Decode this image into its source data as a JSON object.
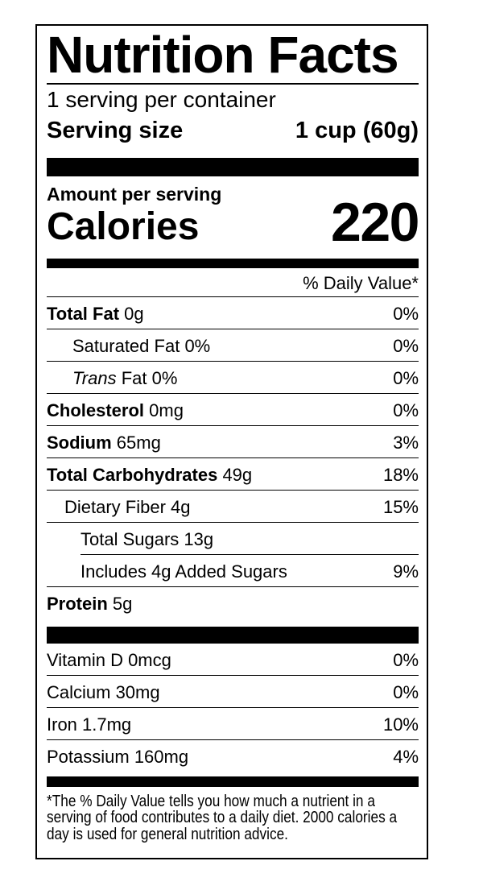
{
  "title": "Nutrition Facts",
  "serving_info": {
    "servings_per_container": "1 serving per container",
    "serving_size_label": "Serving size",
    "serving_size_value": "1 cup (60g)"
  },
  "calories": {
    "amount_per_serving_label": "Amount per serving",
    "label": "Calories",
    "value": "220"
  },
  "daily_value_header": "% Daily Value*",
  "nutrients": [
    {
      "name": "Total Fat",
      "amount": "0g",
      "dv": "0%"
    },
    {
      "name": "Saturated Fat",
      "amount": "0%",
      "dv": "0%"
    },
    {
      "name": "Trans",
      "amount": "Fat 0%",
      "dv": "0%"
    },
    {
      "name": "Cholesterol",
      "amount": "0mg",
      "dv": "0%"
    },
    {
      "name": "Sodium",
      "amount": "65mg",
      "dv": "3%"
    },
    {
      "name": "Total Carbohydrates",
      "amount": "49g",
      "dv": "18%"
    },
    {
      "name": "Dietary Fiber",
      "amount": "4g",
      "dv": ""
    },
    {
      "name": "Dietary Fiber dv",
      "dv_value": "15%"
    },
    {
      "name": "Total Sugars",
      "amount": "13g",
      "dv": ""
    },
    {
      "name": "Includes 4g Added Sugars",
      "amount": "",
      "dv": "9%"
    },
    {
      "name": "Protein",
      "amount": "5g",
      "dv": ""
    }
  ],
  "nutrient_rows": {
    "total_fat": {
      "name": "Total Fat",
      "amount": "0g",
      "dv": "0%"
    },
    "saturated_fat": {
      "name": "Saturated Fat",
      "amount": "0%",
      "dv": "0%"
    },
    "trans_fat": {
      "name": "Trans",
      "amount": "Fat 0%",
      "dv": "0%"
    },
    "cholesterol": {
      "name": "Cholesterol",
      "amount": "0mg",
      "dv": "0%"
    },
    "sodium": {
      "name": "Sodium",
      "amount": "65mg",
      "dv": "3%"
    },
    "total_carbohydrates": {
      "name": "Total Carbohydrates",
      "amount": "49g",
      "dv": "18%"
    },
    "dietary_fiber": {
      "name": "Dietary Fiber",
      "amount": "4g",
      "dv": "15%"
    },
    "total_sugars": {
      "name": "Total Sugars",
      "amount": "13g",
      "dv": ""
    },
    "added_sugars": {
      "name": "Includes 4g Added Sugars",
      "amount": "",
      "dv": "9%"
    },
    "protein": {
      "name": "Protein",
      "amount": "5g",
      "dv": ""
    }
  },
  "micronutrients": [
    {
      "name": "Vitamin D 0mcg",
      "dv": "0%"
    },
    {
      "name": "Calcium 30mg",
      "dv": "0%"
    },
    {
      "name": "Iron 1.7mg",
      "dv": "10%"
    },
    {
      "name": "Potassium 160mg",
      "dv": "4%"
    }
  ],
  "footnote": "*The % Daily Value tells you how much a nutrient in a serving of food contributes to a daily diet. 2000 calories a day is used for general nutrition advice.",
  "colors": {
    "ink": "#000000",
    "background": "#ffffff"
  }
}
